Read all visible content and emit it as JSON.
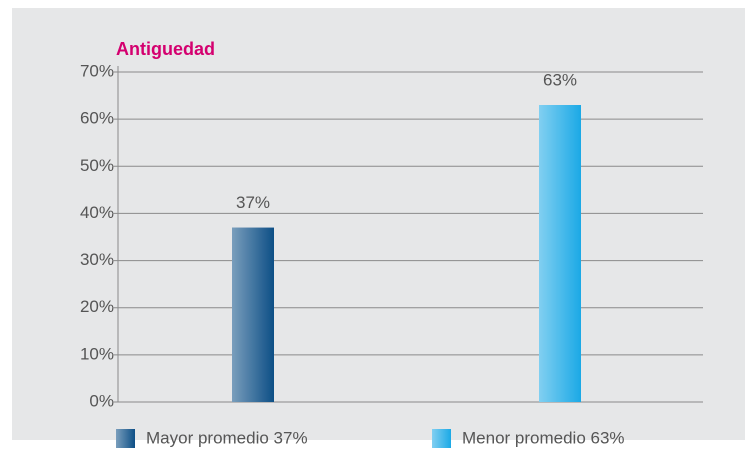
{
  "chart_data": {
    "type": "bar",
    "title": "Antiguedad",
    "categories": [
      "Mayor promedio 37%",
      "Menor promedio 63%"
    ],
    "values": [
      37,
      63
    ],
    "value_labels": [
      "37%",
      "63%"
    ],
    "colors": [
      "#0d4f86",
      "#1ba9e6"
    ],
    "ylim": [
      0,
      70
    ],
    "yticks": [
      {
        "value": 0,
        "label": "0%"
      },
      {
        "value": 10,
        "label": "10%"
      },
      {
        "value": 20,
        "label": "20%"
      },
      {
        "value": 30,
        "label": "30%"
      },
      {
        "value": 40,
        "label": "40%"
      },
      {
        "value": 50,
        "label": "50%"
      },
      {
        "value": 60,
        "label": "60%"
      },
      {
        "value": 70,
        "label": "70%"
      }
    ],
    "grid": true
  }
}
